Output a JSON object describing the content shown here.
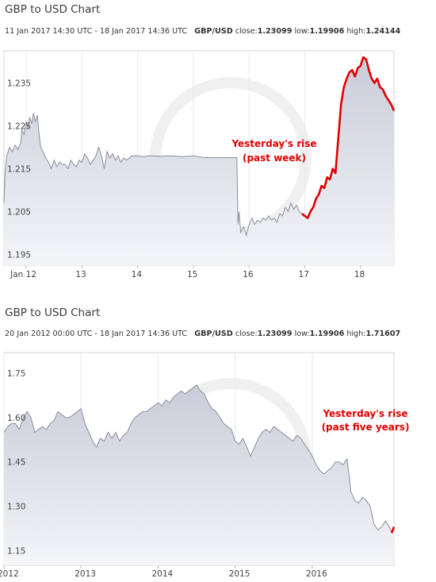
{
  "chart_data": [
    {
      "type": "area",
      "title": "GBP to USD Chart",
      "range_text": "11 Jan 2017 14:30 UTC - 18 Jan 2017 14:36 UTC",
      "pair_label": "GBP/USD",
      "close_label": "close:",
      "close_value": "1.23099",
      "low_label": "low:",
      "low_value": "1.19906",
      "high_label": "high:",
      "high_value": "1.24144",
      "y_ticks": [
        "1.235",
        "1.225",
        "1.215",
        "1.205",
        "1.195"
      ],
      "y_tick_values": [
        1.235,
        1.225,
        1.215,
        1.205,
        1.195
      ],
      "ylim": [
        1.1925,
        1.2425
      ],
      "x_ticks": [
        "Jan 12",
        "13",
        "14",
        "15",
        "16",
        "17",
        "18"
      ],
      "x_tick_values": [
        11.8,
        12.8,
        13.8,
        14.8,
        15.8,
        16.8,
        17.8
      ],
      "xlim": [
        11.4,
        18.4
      ],
      "annotation": "Yesterday's rise\n(past week)",
      "highlight_from": 16.75,
      "line_color": "#8a8e9c",
      "fill_color": "#c9ccd9",
      "highlight_color": "#e00000",
      "annotation_color": "#e00000",
      "x": [
        11.4,
        11.42,
        11.45,
        11.5,
        11.55,
        11.6,
        11.65,
        11.7,
        11.72,
        11.76,
        11.8,
        11.83,
        11.86,
        11.9,
        11.93,
        11.96,
        12.0,
        12.03,
        12.06,
        12.1,
        12.15,
        12.2,
        12.25,
        12.3,
        12.35,
        12.4,
        12.45,
        12.5,
        12.55,
        12.6,
        12.65,
        12.7,
        12.75,
        12.8,
        12.85,
        12.9,
        12.95,
        13.0,
        13.05,
        13.1,
        13.15,
        13.2,
        13.25,
        13.3,
        13.35,
        13.4,
        13.45,
        13.5,
        13.55,
        13.6,
        13.7,
        13.8,
        13.9,
        14.0,
        14.2,
        14.4,
        14.6,
        14.8,
        15.0,
        15.2,
        15.4,
        15.58,
        15.6,
        15.62,
        15.65,
        15.7,
        15.75,
        15.8,
        15.85,
        15.9,
        15.95,
        16.0,
        16.05,
        16.1,
        16.15,
        16.2,
        16.25,
        16.3,
        16.35,
        16.4,
        16.45,
        16.5,
        16.55,
        16.6,
        16.65,
        16.7,
        16.75,
        16.8,
        16.85,
        16.9,
        16.95,
        17.0,
        17.05,
        17.1,
        17.15,
        17.2,
        17.25,
        17.3,
        17.35,
        17.4,
        17.45,
        17.5,
        17.55,
        17.6,
        17.65,
        17.7,
        17.75,
        17.8,
        17.85,
        17.9,
        17.95,
        18.0,
        18.05,
        18.1,
        18.15,
        18.2,
        18.25,
        18.3,
        18.35,
        18.4
      ],
      "values": [
        1.207,
        1.214,
        1.218,
        1.22,
        1.219,
        1.2205,
        1.2195,
        1.221,
        1.224,
        1.223,
        1.226,
        1.2245,
        1.227,
        1.2255,
        1.228,
        1.226,
        1.2275,
        1.223,
        1.22,
        1.219,
        1.2175,
        1.2165,
        1.215,
        1.217,
        1.2155,
        1.2165,
        1.216,
        1.216,
        1.215,
        1.217,
        1.216,
        1.2155,
        1.217,
        1.2165,
        1.2185,
        1.2175,
        1.216,
        1.217,
        1.218,
        1.22,
        1.218,
        1.215,
        1.219,
        1.2175,
        1.2185,
        1.217,
        1.218,
        1.2165,
        1.2175,
        1.217,
        1.218,
        1.218,
        1.2178,
        1.218,
        1.2179,
        1.218,
        1.2178,
        1.218,
        1.2176,
        1.2176,
        1.2176,
        1.2176,
        1.202,
        1.205,
        1.2,
        1.2015,
        1.1995,
        1.202,
        1.2035,
        1.202,
        1.203,
        1.2025,
        1.2035,
        1.203,
        1.204,
        1.203,
        1.2035,
        1.2025,
        1.2045,
        1.204,
        1.206,
        1.205,
        1.207,
        1.2055,
        1.2065,
        1.205,
        1.2045,
        1.204,
        1.2035,
        1.205,
        1.206,
        1.208,
        1.209,
        1.211,
        1.2105,
        1.213,
        1.2125,
        1.215,
        1.214,
        1.222,
        1.23,
        1.234,
        1.236,
        1.2375,
        1.238,
        1.2365,
        1.2385,
        1.239,
        1.241,
        1.2405,
        1.238,
        1.236,
        1.235,
        1.236,
        1.234,
        1.2335,
        1.232,
        1.231,
        1.23,
        1.2285
      ]
    },
    {
      "type": "area",
      "title": "GBP to USD Chart",
      "range_text": "20 Jan 2012 00:00 UTC - 18 Jan 2017 14:36 UTC",
      "pair_label": "GBP/USD",
      "close_label": "close:",
      "close_value": "1.23099",
      "low_label": "low:",
      "low_value": "1.19906",
      "high_label": "high:",
      "high_value": "1.71607",
      "y_ticks": [
        "1.75",
        "1.60",
        "1.45",
        "1.30",
        "1.15"
      ],
      "y_tick_values": [
        1.75,
        1.6,
        1.45,
        1.3,
        1.15
      ],
      "ylim": [
        1.1,
        1.82
      ],
      "x_ticks": [
        "2012",
        "2013",
        "2014",
        "2015",
        "2016"
      ],
      "x_tick_values": [
        2012.0,
        2013.0,
        2014.0,
        2015.0,
        2016.0
      ],
      "xlim": [
        2012.0,
        2017.06
      ],
      "annotation": "Yesterday's rise\n(past five years)",
      "highlight_from": 2017.03,
      "line_color": "#8a8e9c",
      "fill_color": "#c9ccd9",
      "highlight_color": "#e00000",
      "annotation_color": "#e00000",
      "x": [
        2012.0,
        2012.05,
        2012.1,
        2012.15,
        2012.2,
        2012.25,
        2012.3,
        2012.35,
        2012.4,
        2012.45,
        2012.5,
        2012.55,
        2012.6,
        2012.65,
        2012.7,
        2012.75,
        2012.8,
        2012.85,
        2012.9,
        2012.95,
        2013.0,
        2013.05,
        2013.1,
        2013.15,
        2013.2,
        2013.25,
        2013.3,
        2013.35,
        2013.4,
        2013.45,
        2013.5,
        2013.55,
        2013.6,
        2013.65,
        2013.7,
        2013.75,
        2013.8,
        2013.85,
        2013.9,
        2013.95,
        2014.0,
        2014.05,
        2014.1,
        2014.15,
        2014.2,
        2014.25,
        2014.3,
        2014.35,
        2014.4,
        2014.45,
        2014.5,
        2014.55,
        2014.6,
        2014.65,
        2014.7,
        2014.75,
        2014.8,
        2014.85,
        2014.9,
        2014.95,
        2015.0,
        2015.05,
        2015.1,
        2015.15,
        2015.2,
        2015.25,
        2015.3,
        2015.35,
        2015.4,
        2015.45,
        2015.5,
        2015.55,
        2015.6,
        2015.65,
        2015.7,
        2015.75,
        2015.8,
        2015.85,
        2015.9,
        2015.95,
        2016.0,
        2016.05,
        2016.1,
        2016.15,
        2016.2,
        2016.25,
        2016.3,
        2016.35,
        2016.4,
        2016.45,
        2016.48,
        2016.5,
        2016.55,
        2016.6,
        2016.65,
        2016.7,
        2016.75,
        2016.8,
        2016.85,
        2016.9,
        2016.95,
        2017.0,
        2017.03,
        2017.06
      ],
      "values": [
        1.55,
        1.57,
        1.58,
        1.58,
        1.56,
        1.6,
        1.62,
        1.6,
        1.55,
        1.56,
        1.57,
        1.56,
        1.58,
        1.59,
        1.62,
        1.61,
        1.6,
        1.6,
        1.61,
        1.62,
        1.63,
        1.58,
        1.55,
        1.52,
        1.5,
        1.53,
        1.52,
        1.55,
        1.53,
        1.55,
        1.52,
        1.54,
        1.55,
        1.58,
        1.6,
        1.61,
        1.62,
        1.62,
        1.63,
        1.64,
        1.65,
        1.64,
        1.66,
        1.65,
        1.67,
        1.68,
        1.69,
        1.68,
        1.69,
        1.7,
        1.71,
        1.69,
        1.68,
        1.65,
        1.63,
        1.62,
        1.6,
        1.58,
        1.57,
        1.56,
        1.52,
        1.51,
        1.53,
        1.5,
        1.47,
        1.5,
        1.53,
        1.55,
        1.56,
        1.55,
        1.57,
        1.56,
        1.55,
        1.54,
        1.53,
        1.52,
        1.54,
        1.53,
        1.51,
        1.49,
        1.47,
        1.44,
        1.42,
        1.41,
        1.42,
        1.43,
        1.45,
        1.45,
        1.44,
        1.46,
        1.4,
        1.35,
        1.32,
        1.31,
        1.33,
        1.32,
        1.3,
        1.24,
        1.22,
        1.23,
        1.25,
        1.23,
        1.21,
        1.23
      ]
    }
  ]
}
